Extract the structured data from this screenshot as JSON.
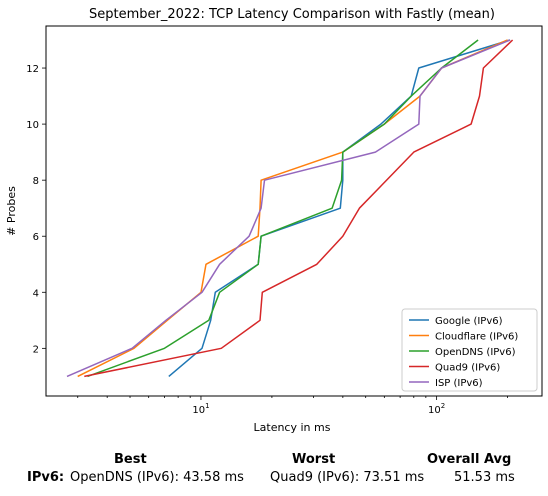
{
  "chart_data": {
    "type": "line",
    "title": "September_2022: TCP Latency Comparison with Fastly (mean)",
    "xlabel": "Latency in ms",
    "ylabel": "# Probes",
    "xscale": "log",
    "xlim": [
      2.2,
      280
    ],
    "ylim": [
      0.3,
      13.5
    ],
    "xticks": [
      {
        "value": 10,
        "label": "10^1"
      },
      {
        "value": 100,
        "label": "10^2"
      }
    ],
    "yticks": [
      2,
      4,
      6,
      8,
      10,
      12
    ],
    "grid": false,
    "legend_position": "lower-right",
    "series": [
      {
        "name": "Google (IPv6)",
        "color": "#1f77b4",
        "points": [
          [
            7.3,
            1
          ],
          [
            10.1,
            2
          ],
          [
            11,
            3
          ],
          [
            11.5,
            4
          ],
          [
            17.5,
            5
          ],
          [
            18,
            6
          ],
          [
            39,
            7
          ],
          [
            40,
            8
          ],
          [
            40,
            9
          ],
          [
            58,
            10
          ],
          [
            78,
            11
          ],
          [
            84,
            12
          ],
          [
            205,
            13
          ]
        ]
      },
      {
        "name": "Cloudflare (IPv6)",
        "color": "#ff7f0e",
        "points": [
          [
            3,
            1
          ],
          [
            5.2,
            2
          ],
          [
            7.2,
            3
          ],
          [
            10,
            4
          ],
          [
            10.5,
            5
          ],
          [
            17.5,
            6
          ],
          [
            17.8,
            7
          ],
          [
            18,
            8
          ],
          [
            40,
            9
          ],
          [
            60,
            10
          ],
          [
            85,
            11
          ],
          [
            105,
            12
          ],
          [
            200,
            13
          ]
        ]
      },
      {
        "name": "OpenDNS (IPv6)",
        "color": "#2ca02c",
        "points": [
          [
            3.3,
            1
          ],
          [
            7,
            2
          ],
          [
            10.8,
            3
          ],
          [
            12,
            4
          ],
          [
            17.5,
            5
          ],
          [
            18,
            6
          ],
          [
            36,
            7
          ],
          [
            39.5,
            8
          ],
          [
            40,
            9
          ],
          [
            60,
            10
          ],
          [
            78,
            11
          ],
          [
            105,
            12
          ],
          [
            150,
            13
          ]
        ]
      },
      {
        "name": "Quad9 (IPv6)",
        "color": "#d62728",
        "points": [
          [
            3.2,
            1
          ],
          [
            12.2,
            2
          ],
          [
            17.8,
            3
          ],
          [
            18.2,
            4
          ],
          [
            31,
            5
          ],
          [
            40,
            6
          ],
          [
            47,
            7
          ],
          [
            80,
            9
          ],
          [
            140,
            10
          ],
          [
            152,
            11
          ],
          [
            158,
            12
          ],
          [
            210,
            13
          ]
        ]
      },
      {
        "name": "ISP (IPv6)",
        "color": "#9467bd",
        "points": [
          [
            2.7,
            1
          ],
          [
            5.1,
            2
          ],
          [
            7.1,
            3
          ],
          [
            10.1,
            4
          ],
          [
            12,
            5
          ],
          [
            16,
            6
          ],
          [
            18,
            7
          ],
          [
            18.6,
            8
          ],
          [
            55,
            9
          ],
          [
            84,
            10
          ],
          [
            85,
            11
          ],
          [
            105,
            12
          ],
          [
            205,
            13
          ]
        ]
      }
    ]
  },
  "summary": {
    "headers": {
      "best": "Best",
      "worst": "Worst",
      "avg": "Overall Avg"
    },
    "row_label": "IPv6:",
    "best": "OpenDNS (IPv6): 43.58 ms",
    "worst": "Quad9 (IPv6): 73.51 ms",
    "avg": "51.53 ms"
  }
}
